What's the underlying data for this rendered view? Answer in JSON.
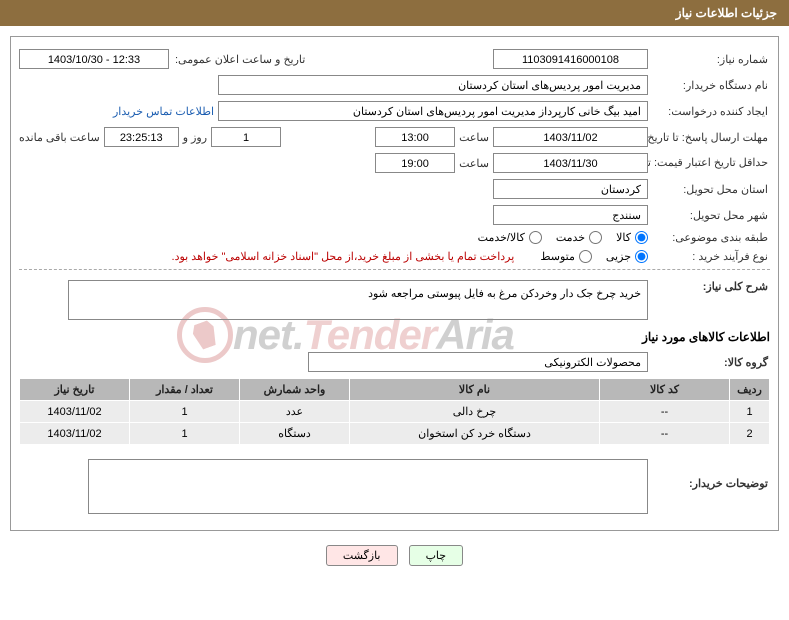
{
  "header": {
    "title": "جزئیات اطلاعات نیاز"
  },
  "need": {
    "number_label": "شماره نیاز:",
    "number": "1103091416000108",
    "announce_label": "تاریخ و ساعت اعلان عمومی:",
    "announce": "1403/10/30 - 12:33"
  },
  "buyer_org": {
    "label": "نام دستگاه خریدار:",
    "value": "مدیریت امور پردیس‌های استان کردستان"
  },
  "requester": {
    "label": "ایجاد کننده درخواست:",
    "value": "امید بیگ خانی کارپرداز مدیریت امور پردیس‌های استان کردستان",
    "contact_link": "اطلاعات تماس خریدار"
  },
  "deadline": {
    "send_label": "مهلت ارسال پاسخ: تا تاریخ:",
    "send_date": "1403/11/02",
    "time_label": "ساعت",
    "send_time": "13:00",
    "days": "1",
    "days_suffix": "روز و",
    "remain_time": "23:25:13",
    "remain_suffix": "ساعت باقی مانده"
  },
  "validity": {
    "label": "حداقل تاریخ اعتبار قیمت: تا تاریخ:",
    "date": "1403/11/30",
    "time_label": "ساعت",
    "time": "19:00"
  },
  "province": {
    "label": "استان محل تحویل:",
    "value": "کردستان"
  },
  "city": {
    "label": "شهر محل تحویل:",
    "value": "سنندج"
  },
  "category": {
    "label": "طبقه بندی موضوعی:",
    "options": [
      {
        "label": "کالا",
        "checked": true
      },
      {
        "label": "خدمت",
        "checked": false
      },
      {
        "label": "کالا/خدمت",
        "checked": false
      }
    ]
  },
  "process": {
    "label": "نوع فرآیند خرید :",
    "options": [
      {
        "label": "جزیی",
        "checked": true
      },
      {
        "label": "متوسط",
        "checked": false
      }
    ],
    "note": "پرداخت تمام یا بخشی از مبلغ خرید،از محل \"اسناد خزانه اسلامی\" خواهد بود."
  },
  "watermark": {
    "t1": "Aria",
    "t2": "Tender",
    "t3": ".net"
  },
  "general_desc": {
    "label": "شرح کلی نیاز:",
    "value": "خرید چرخ جک دار وخردکن مرغ به فایل پیوستی مراجعه شود"
  },
  "goods_section": {
    "title": "اطلاعات کالاهای مورد نیاز"
  },
  "goods_group": {
    "label": "گروه کالا:",
    "value": "محصولات الکترونیکی"
  },
  "table": {
    "headers": {
      "idx": "ردیف",
      "code": "کد کالا",
      "name": "نام کالا",
      "unit": "واحد شمارش",
      "qty": "تعداد / مقدار",
      "date": "تاریخ نیاز"
    },
    "rows": [
      {
        "idx": "1",
        "code": "--",
        "name": "چرخ دالی",
        "unit": "عدد",
        "qty": "1",
        "date": "1403/11/02"
      },
      {
        "idx": "2",
        "code": "--",
        "name": "دستگاه خرد کن استخوان",
        "unit": "دستگاه",
        "qty": "1",
        "date": "1403/11/02"
      }
    ]
  },
  "buyer_desc": {
    "label": "توضیحات خریدار:"
  },
  "buttons": {
    "print": "چاپ",
    "back": "بازگشت"
  }
}
